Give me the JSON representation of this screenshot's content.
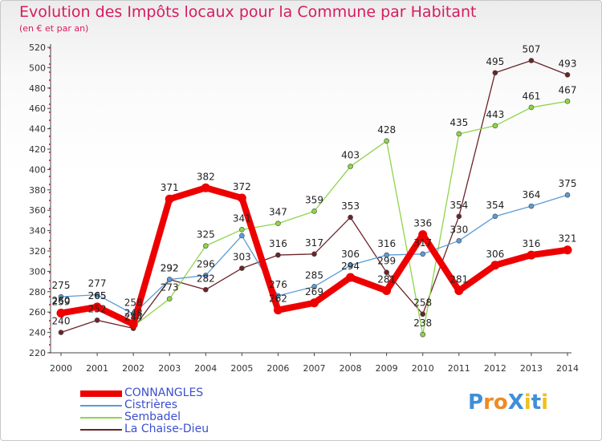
{
  "title": "Evolution des Impôts locaux pour la Commune par Habitant",
  "subtitle": "(en € et par an)",
  "chart_data": {
    "type": "line",
    "x": [
      "2000",
      "2001",
      "2002",
      "2003",
      "2004",
      "2005",
      "2006",
      "2007",
      "2008",
      "2009",
      "2010",
      "2011",
      "2012",
      "2013",
      "2014"
    ],
    "y_ticks": [
      220,
      240,
      260,
      280,
      300,
      320,
      340,
      360,
      380,
      400,
      420,
      440,
      460,
      480,
      500,
      520
    ],
    "ylim": [
      220,
      520
    ],
    "grid": false,
    "legend_position": "bottom-left",
    "series": [
      {
        "name": "CONNANGLES",
        "color": "#ee0000",
        "values": [
          259,
          265,
          248,
          371,
          382,
          372,
          262,
          269,
          294,
          281,
          336,
          281,
          306,
          316,
          321
        ],
        "labels": [
          "259",
          "265",
          "248",
          "371",
          "382",
          "372",
          "262",
          "269",
          "294",
          "281",
          "336",
          "281",
          "306",
          "316",
          "321"
        ]
      },
      {
        "name": "Cistrières",
        "color": "#5b9bd5",
        "values": [
          275,
          277,
          258,
          292,
          296,
          335,
          276,
          285,
          306,
          316,
          317,
          330,
          354,
          364,
          375
        ],
        "labels": [
          "275",
          "277",
          "258",
          "292",
          "296",
          "",
          "276",
          "285",
          "306",
          "316",
          "317",
          "330",
          "354",
          "364",
          "375"
        ]
      },
      {
        "name": "Sembadel",
        "color": "#8fd44a",
        "values": [
          260,
          265,
          246,
          273,
          325,
          341,
          347,
          359,
          403,
          428,
          238,
          435,
          443,
          461,
          467
        ],
        "labels": [
          "260",
          "265",
          "",
          "273",
          "325",
          "341",
          "347",
          "359",
          "403",
          "428",
          "238",
          "435",
          "443",
          "461",
          "467"
        ]
      },
      {
        "name": "La Chaise-Dieu",
        "color": "#6b2428",
        "values": [
          240,
          252,
          244,
          292,
          282,
          303,
          316,
          317,
          353,
          299,
          258,
          354,
          495,
          507,
          493
        ],
        "labels": [
          "240",
          "252",
          "244",
          "292",
          "282",
          "303",
          "316",
          "317",
          "353",
          "299",
          "258",
          "354",
          "495",
          "507",
          "493"
        ]
      }
    ]
  },
  "logo": {
    "text": "ProXiti",
    "letter_colors": [
      "#3f8fd8",
      "#f08a24",
      "#f08a24",
      "#3f8fd8",
      "#f0c020",
      "#3f8fd8",
      "#f0c020"
    ]
  }
}
